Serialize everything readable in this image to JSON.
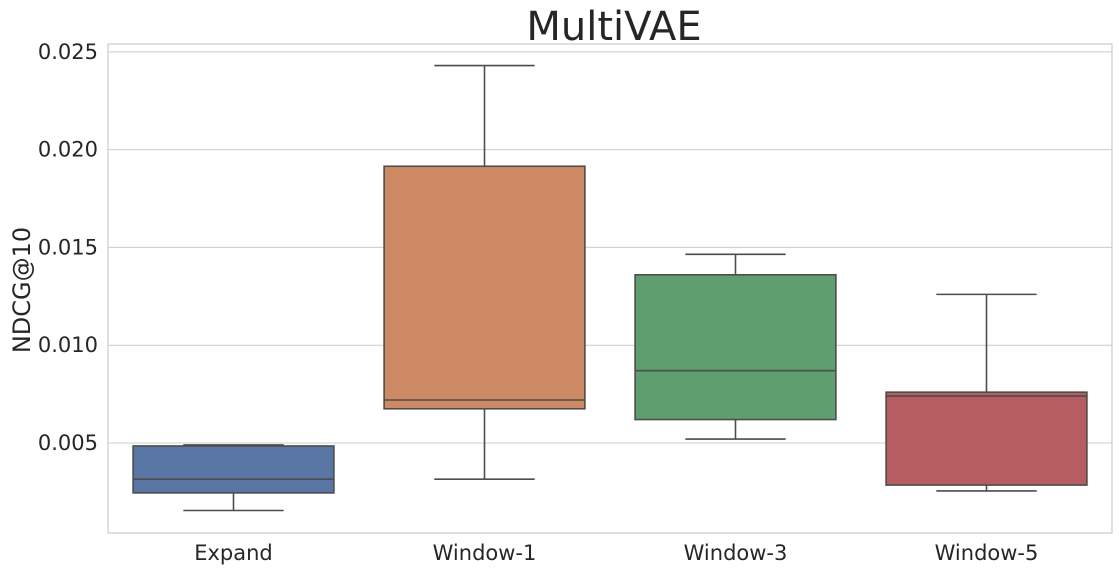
{
  "chart_data": {
    "type": "box",
    "title": "MultiVAE",
    "xlabel": "",
    "ylabel": "NDCG@10",
    "ylim": [
      0.0004,
      0.0254
    ],
    "yticks": [
      0.005,
      0.01,
      0.015,
      0.02,
      0.025
    ],
    "ytick_labels": [
      "0.005",
      "0.010",
      "0.015",
      "0.020",
      "0.025"
    ],
    "grid": true,
    "categories": [
      "Expand",
      "Window-1",
      "Window-3",
      "Window-5"
    ],
    "boxes": [
      {
        "category": "Expand",
        "color": "#5875a4",
        "whisker_low": 0.00155,
        "q1": 0.00245,
        "median": 0.00315,
        "q3": 0.00485,
        "whisker_high": 0.0049
      },
      {
        "category": "Window-1",
        "color": "#cc8963",
        "whisker_low": 0.00315,
        "q1": 0.00675,
        "median": 0.0072,
        "q3": 0.01915,
        "whisker_high": 0.0243
      },
      {
        "category": "Window-3",
        "color": "#5f9e6e",
        "whisker_low": 0.0052,
        "q1": 0.0062,
        "median": 0.0087,
        "q3": 0.0136,
        "whisker_high": 0.01465
      },
      {
        "category": "Window-5",
        "color": "#b55d60",
        "whisker_low": 0.00255,
        "q1": 0.00285,
        "median": 0.0074,
        "q3": 0.0076,
        "whisker_high": 0.0126
      }
    ]
  }
}
